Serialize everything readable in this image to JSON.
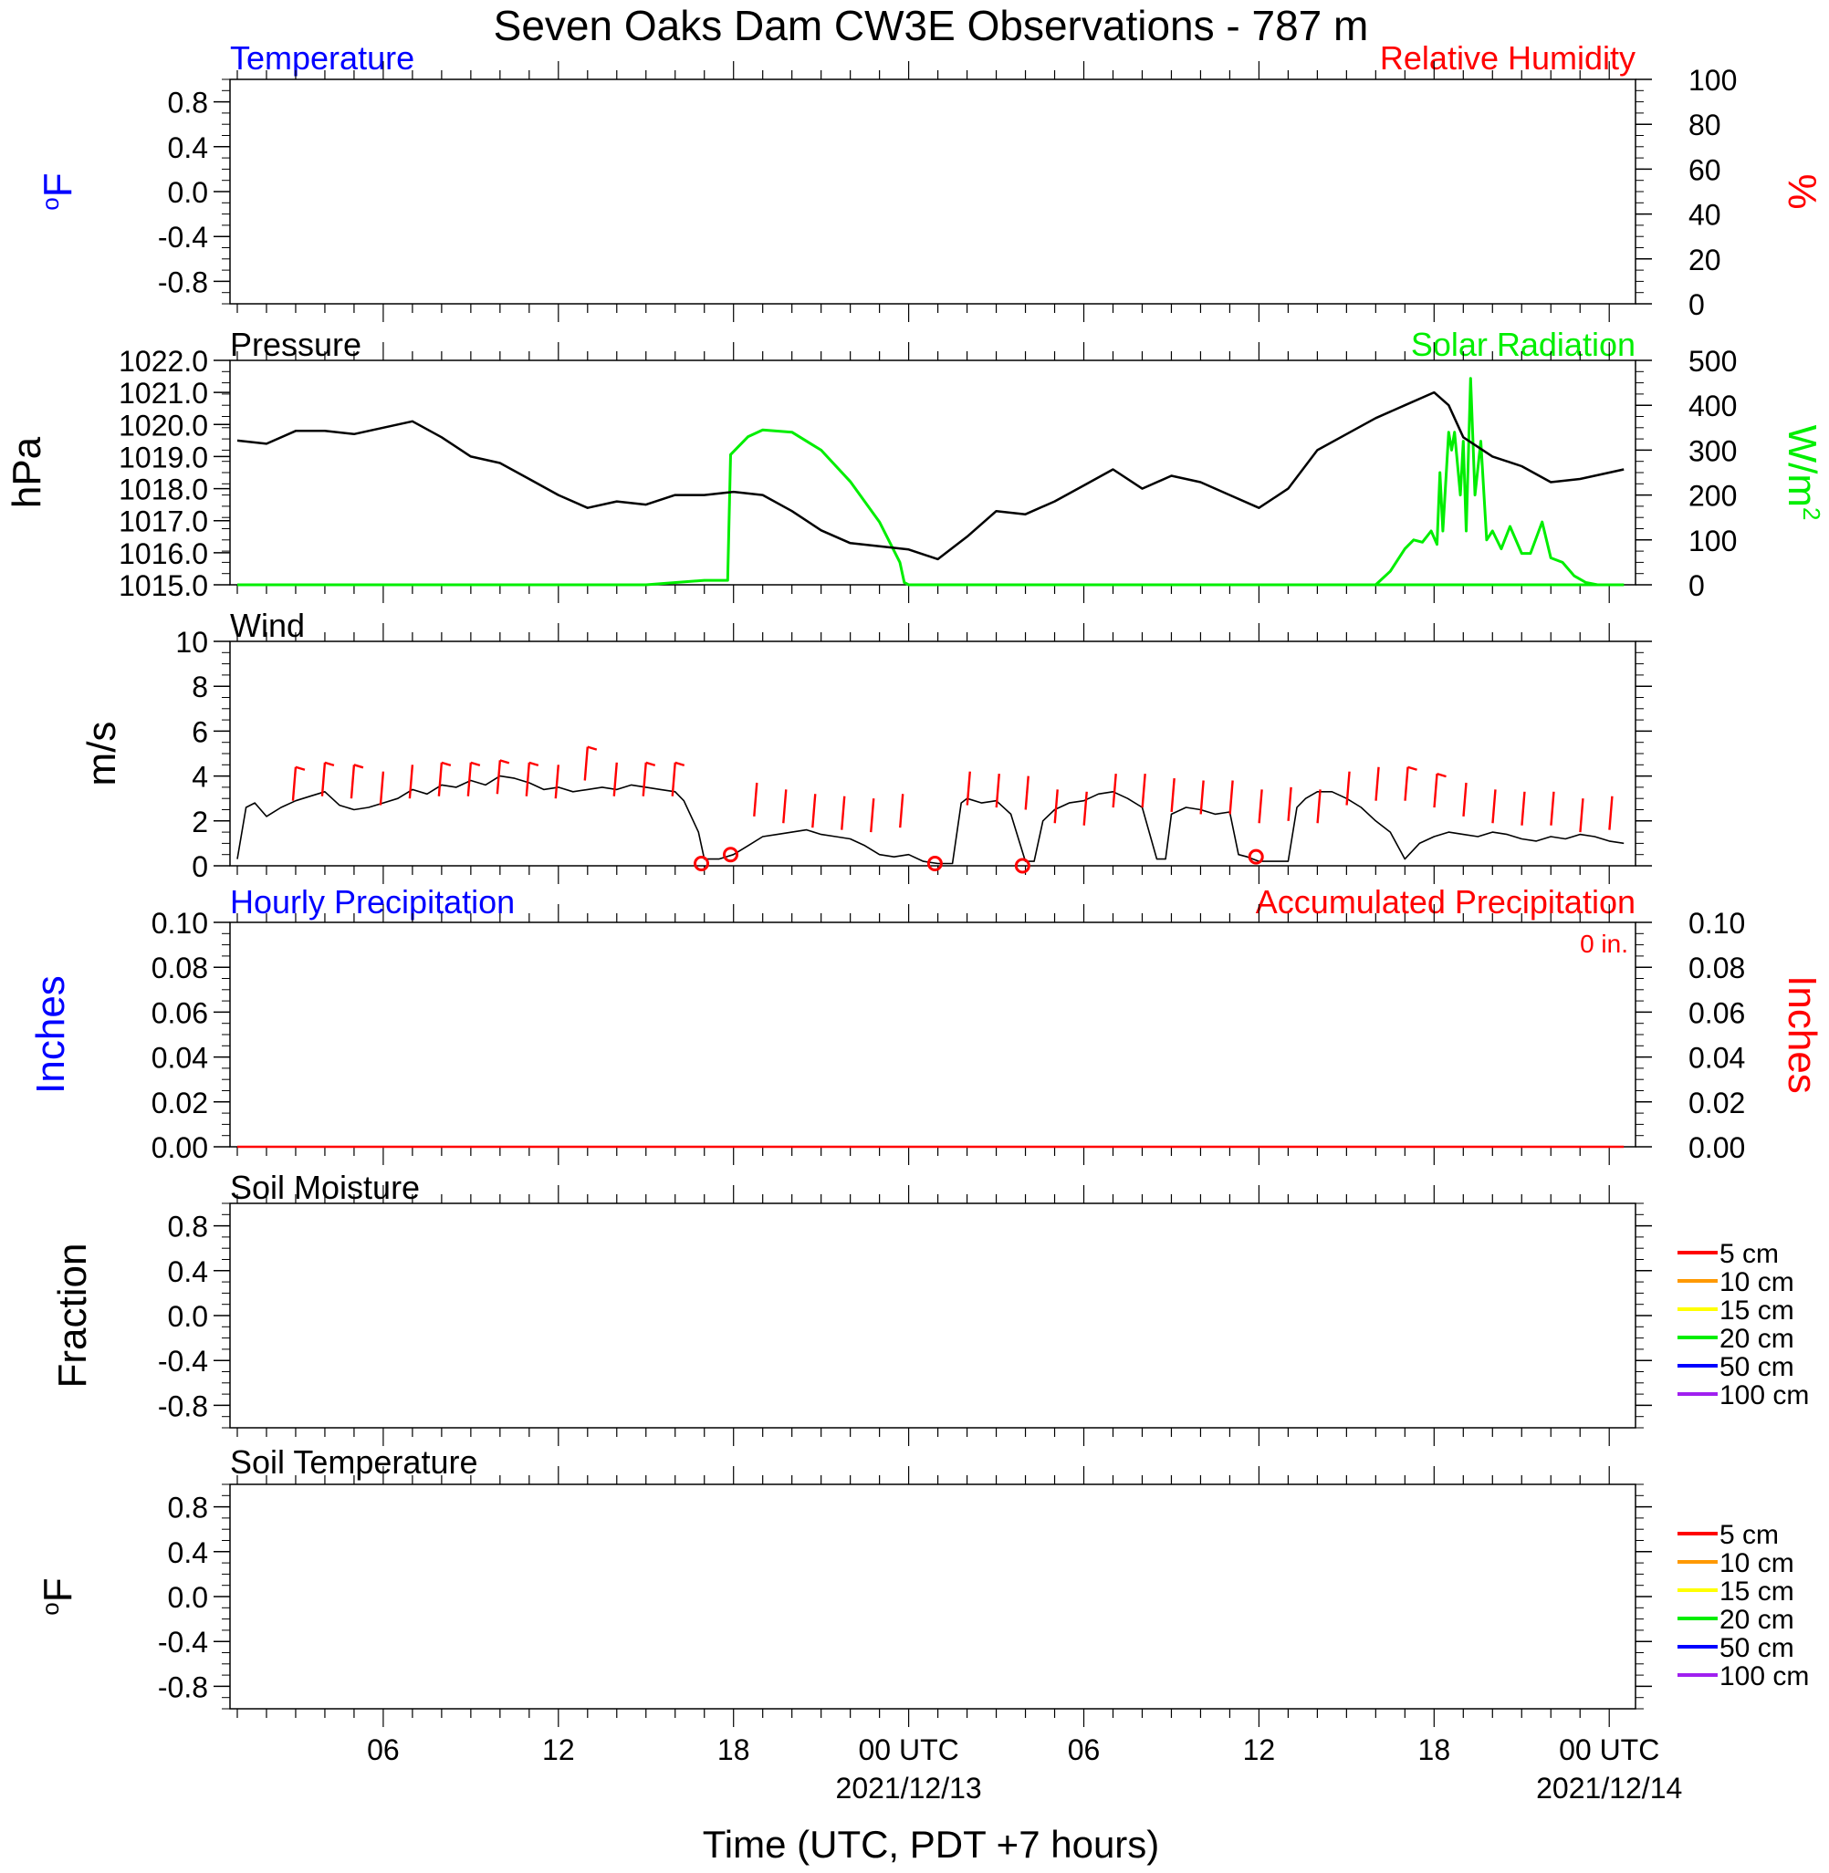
{
  "title": "Seven Oaks Dam CW3E Observations - 787 m",
  "xlabel": "Time (UTC, PDT +7 hours)",
  "x_ticks": [
    {
      "hour": 6,
      "label": "06",
      "sub": ""
    },
    {
      "hour": 12,
      "label": "12",
      "sub": ""
    },
    {
      "hour": 18,
      "label": "18",
      "sub": ""
    },
    {
      "hour": 24,
      "label": "00 UTC",
      "sub": "2021/12/13"
    },
    {
      "hour": 30,
      "label": "06",
      "sub": ""
    },
    {
      "hour": 36,
      "label": "12",
      "sub": ""
    },
    {
      "hour": 42,
      "label": "18",
      "sub": ""
    },
    {
      "hour": 48,
      "label": "00 UTC",
      "sub": "2021/12/14"
    }
  ],
  "colors": {
    "temperature": "#0000ff",
    "humidity": "#ff0000",
    "pressure": "#000000",
    "solar": "#00ee00",
    "wind_speed": "#000000",
    "wind_barb": "#ff0000",
    "hourly_precip": "#0000ff",
    "accum_precip": "#ff0000"
  },
  "chart_data": [
    {
      "type": "line",
      "panel": "temperature",
      "left_title": "Temperature",
      "right_title": "Relative Humidity",
      "left_unit": "oF",
      "right_unit": "%",
      "left_ylim": [
        -1.0,
        1.0
      ],
      "left_ticks": [
        "0.8",
        "0.4",
        "0.0",
        "-0.4",
        "-0.8"
      ],
      "right_ylim": [
        0,
        100
      ],
      "right_ticks": [
        "100",
        "80",
        "60",
        "40",
        "20",
        "0"
      ],
      "series": []
    },
    {
      "type": "line",
      "panel": "pressure",
      "left_title": "Pressure",
      "right_title": "Solar Radiation",
      "left_unit": "hPa",
      "right_unit": "W/m2",
      "left_ylim": [
        1015.0,
        1022.0
      ],
      "left_ticks": [
        "1022.0",
        "1021.0",
        "1020.0",
        "1019.0",
        "1018.0",
        "1017.0",
        "1016.0",
        "1015.0"
      ],
      "right_ylim": [
        0,
        500
      ],
      "right_ticks": [
        "500",
        "400",
        "300",
        "200",
        "100",
        "0"
      ],
      "pressure_x": [
        1,
        2,
        3,
        4,
        5,
        6,
        7,
        8,
        9,
        10,
        11,
        12,
        13,
        14,
        15,
        16,
        17,
        18,
        19,
        20,
        21,
        22,
        23,
        24,
        25,
        26,
        27,
        28,
        29,
        30,
        31,
        32,
        33,
        34,
        35,
        36,
        37,
        38,
        39,
        40,
        41,
        42,
        42.5,
        43,
        44,
        45,
        46,
        47,
        48.5
      ],
      "pressure_y": [
        1019.5,
        1019.4,
        1019.8,
        1019.8,
        1019.7,
        1019.9,
        1020.1,
        1019.6,
        1019.0,
        1018.8,
        1018.3,
        1017.8,
        1017.4,
        1017.6,
        1017.5,
        1017.8,
        1017.8,
        1017.9,
        1017.8,
        1017.3,
        1016.7,
        1016.3,
        1016.2,
        1016.1,
        1015.8,
        1016.5,
        1017.3,
        1017.2,
        1017.6,
        1018.1,
        1018.6,
        1018.0,
        1018.4,
        1018.2,
        1017.8,
        1017.4,
        1018.0,
        1019.2,
        1019.7,
        1020.2,
        1020.6,
        1021.0,
        1020.6,
        1019.6,
        1019.0,
        1018.7,
        1018.2,
        1018.3,
        1018.6
      ],
      "solar_x": [
        1,
        15,
        17.0,
        17.8,
        17.9,
        18.5,
        19,
        20,
        21,
        22,
        23,
        23.7,
        23.85,
        24,
        48.5
      ],
      "solar_y": [
        0,
        0,
        10,
        10,
        290,
        330,
        345,
        340,
        300,
        230,
        140,
        50,
        5,
        0,
        0
      ],
      "solar2_x": [
        39,
        40,
        40.5,
        41,
        41.3,
        41.6,
        41.9,
        42.1,
        42.2,
        42.3,
        42.5,
        42.6,
        42.7,
        42.9,
        43.0,
        43.1,
        43.25,
        43.4,
        43.6,
        43.8,
        44,
        44.3,
        44.6,
        45,
        45.3,
        45.7,
        46,
        46.4,
        46.8,
        47.2,
        47.6,
        48,
        48.5
      ],
      "solar2_y": [
        0,
        0,
        30,
        80,
        100,
        95,
        120,
        90,
        250,
        120,
        340,
        300,
        340,
        200,
        320,
        120,
        460,
        200,
        320,
        100,
        120,
        80,
        130,
        70,
        70,
        140,
        60,
        50,
        20,
        5,
        0,
        0,
        0
      ]
    },
    {
      "type": "line",
      "panel": "wind",
      "left_title": "Wind",
      "left_unit": "m/s",
      "left_ylim": [
        0,
        10
      ],
      "left_ticks": [
        "10",
        "8",
        "6",
        "4",
        "2",
        "0"
      ],
      "speed_x": [
        1.0,
        1.3,
        1.6,
        2.0,
        2.5,
        3.0,
        3.5,
        4.0,
        4.5,
        5.0,
        5.5,
        6.0,
        6.5,
        7.0,
        7.5,
        8.0,
        8.5,
        9.0,
        9.5,
        10.0,
        10.5,
        11.0,
        11.5,
        12.0,
        12.5,
        13.0,
        13.5,
        14.0,
        14.5,
        15.0,
        15.5,
        16.0,
        16.3,
        16.8,
        17.0,
        17.5,
        18.0,
        18.5,
        19.0,
        19.5,
        20.0,
        20.5,
        21.0,
        21.5,
        22.0,
        22.5,
        23.0,
        23.5,
        24.0,
        24.5,
        25.0,
        25.5,
        25.8,
        26.0,
        26.5,
        27.0,
        27.5,
        28.0,
        28.3,
        28.6,
        29.0,
        29.5,
        30.0,
        30.5,
        31.0,
        31.5,
        32.0,
        32.5,
        32.8,
        33.0,
        33.5,
        34.0,
        34.5,
        35.0,
        35.3,
        35.6,
        36.0,
        36.5,
        37.0,
        37.3,
        37.6,
        38.0,
        38.5,
        39.0,
        39.5,
        40.0,
        40.5,
        41.0,
        41.5,
        42.0,
        42.5,
        43.0,
        43.5,
        44.0,
        44.5,
        45.0,
        45.5,
        46.0,
        46.5,
        47.0,
        47.5,
        48.0,
        48.5
      ],
      "speed_y": [
        0.3,
        2.6,
        2.8,
        2.2,
        2.6,
        2.9,
        3.1,
        3.3,
        2.7,
        2.5,
        2.6,
        2.8,
        3.0,
        3.4,
        3.2,
        3.6,
        3.5,
        3.8,
        3.6,
        4.0,
        3.9,
        3.7,
        3.4,
        3.5,
        3.3,
        3.4,
        3.5,
        3.4,
        3.6,
        3.5,
        3.4,
        3.3,
        2.9,
        1.5,
        0.3,
        0.3,
        0.5,
        0.9,
        1.3,
        1.4,
        1.5,
        1.6,
        1.4,
        1.3,
        1.2,
        0.9,
        0.5,
        0.4,
        0.5,
        0.2,
        0.1,
        0.1,
        2.8,
        3.0,
        2.8,
        2.9,
        2.3,
        0.2,
        0.2,
        2.0,
        2.5,
        2.8,
        2.9,
        3.2,
        3.3,
        3.0,
        2.6,
        0.3,
        0.3,
        2.3,
        2.6,
        2.5,
        2.3,
        2.4,
        0.5,
        0.4,
        0.2,
        0.2,
        0.2,
        2.6,
        3.0,
        3.3,
        3.3,
        3.0,
        2.6,
        2.0,
        1.5,
        0.3,
        1.0,
        1.3,
        1.5,
        1.4,
        1.3,
        1.5,
        1.4,
        1.2,
        1.1,
        1.3,
        1.2,
        1.4,
        1.3,
        1.1,
        1.0
      ],
      "barbs_x": [
        3,
        4,
        5,
        6,
        7,
        8,
        9,
        10,
        11,
        12,
        13,
        14,
        15,
        16,
        18.8,
        19.8,
        20.8,
        21.8,
        22.8,
        23.8,
        26.1,
        27.1,
        28.1,
        29.1,
        30.1,
        31.1,
        32.1,
        33.1,
        34.1,
        35.1,
        36.1,
        37.1,
        38.1,
        39.1,
        40.1,
        41.1,
        42.1,
        43.1,
        44.1,
        45.1,
        46.1,
        47.1,
        48.1
      ],
      "barbs_y": [
        3.5,
        3.7,
        3.6,
        3.3,
        3.6,
        3.7,
        3.7,
        3.8,
        3.7,
        3.6,
        4.4,
        3.7,
        3.7,
        3.7,
        2.8,
        2.5,
        2.3,
        2.2,
        2.1,
        2.3,
        3.3,
        3.2,
        3.1,
        2.5,
        2.4,
        3.2,
        3.2,
        3.0,
        2.9,
        2.9,
        2.5,
        2.6,
        2.5,
        3.3,
        3.5,
        3.5,
        3.2,
        2.8,
        2.5,
        2.4,
        2.4,
        2.1,
        2.2
      ],
      "barbs_flag": [
        true,
        true,
        true,
        false,
        false,
        true,
        true,
        true,
        true,
        false,
        true,
        false,
        true,
        true,
        false,
        false,
        false,
        false,
        false,
        false,
        false,
        false,
        false,
        false,
        false,
        false,
        false,
        false,
        false,
        false,
        false,
        false,
        false,
        false,
        false,
        true,
        true,
        false,
        false,
        false,
        false,
        false,
        false
      ],
      "calm_x": [
        16.9,
        17.9,
        24.9,
        27.9,
        35.9
      ],
      "calm_y": [
        0.1,
        0.5,
        0.1,
        0.0,
        0.4
      ]
    },
    {
      "type": "line",
      "panel": "precip",
      "left_title": "Hourly Precipitation",
      "right_title": "Accumulated Precipitation",
      "total_label": "0 in.",
      "left_unit": "Inches",
      "right_unit": "Inches",
      "left_ylim": [
        0,
        0.1
      ],
      "left_ticks": [
        "0.10",
        "0.08",
        "0.06",
        "0.04",
        "0.02",
        "0.00"
      ],
      "right_ylim": [
        0,
        0.1
      ],
      "right_ticks": [
        "0.10",
        "0.08",
        "0.06",
        "0.04",
        "0.02",
        "0.00"
      ],
      "accum_x": [
        1,
        48.5
      ],
      "accum_y": [
        0,
        0
      ]
    },
    {
      "type": "line",
      "panel": "soil_moisture",
      "left_title": "Soil Moisture",
      "left_unit": "Fraction",
      "left_ylim": [
        -1.0,
        1.0
      ],
      "left_ticks": [
        "0.8",
        "0.4",
        "0.0",
        "-0.4",
        "-0.8"
      ],
      "legend": [
        {
          "label": "5 cm",
          "color": "#ff0000"
        },
        {
          "label": "10 cm",
          "color": "#ff9900"
        },
        {
          "label": "15 cm",
          "color": "#ffff00"
        },
        {
          "label": "20 cm",
          "color": "#00ee00"
        },
        {
          "label": "50 cm",
          "color": "#0000ff"
        },
        {
          "label": "100 cm",
          "color": "#a020f0"
        }
      ],
      "series": []
    },
    {
      "type": "line",
      "panel": "soil_temperature",
      "left_title": "Soil Temperature",
      "left_unit": "oF",
      "left_ylim": [
        -1.0,
        1.0
      ],
      "left_ticks": [
        "0.8",
        "0.4",
        "0.0",
        "-0.4",
        "-0.8"
      ],
      "legend": [
        {
          "label": "5 cm",
          "color": "#ff0000"
        },
        {
          "label": "10 cm",
          "color": "#ff9900"
        },
        {
          "label": "15 cm",
          "color": "#ffff00"
        },
        {
          "label": "20 cm",
          "color": "#00ee00"
        },
        {
          "label": "50 cm",
          "color": "#0000ff"
        },
        {
          "label": "100 cm",
          "color": "#a020f0"
        }
      ],
      "series": []
    }
  ]
}
